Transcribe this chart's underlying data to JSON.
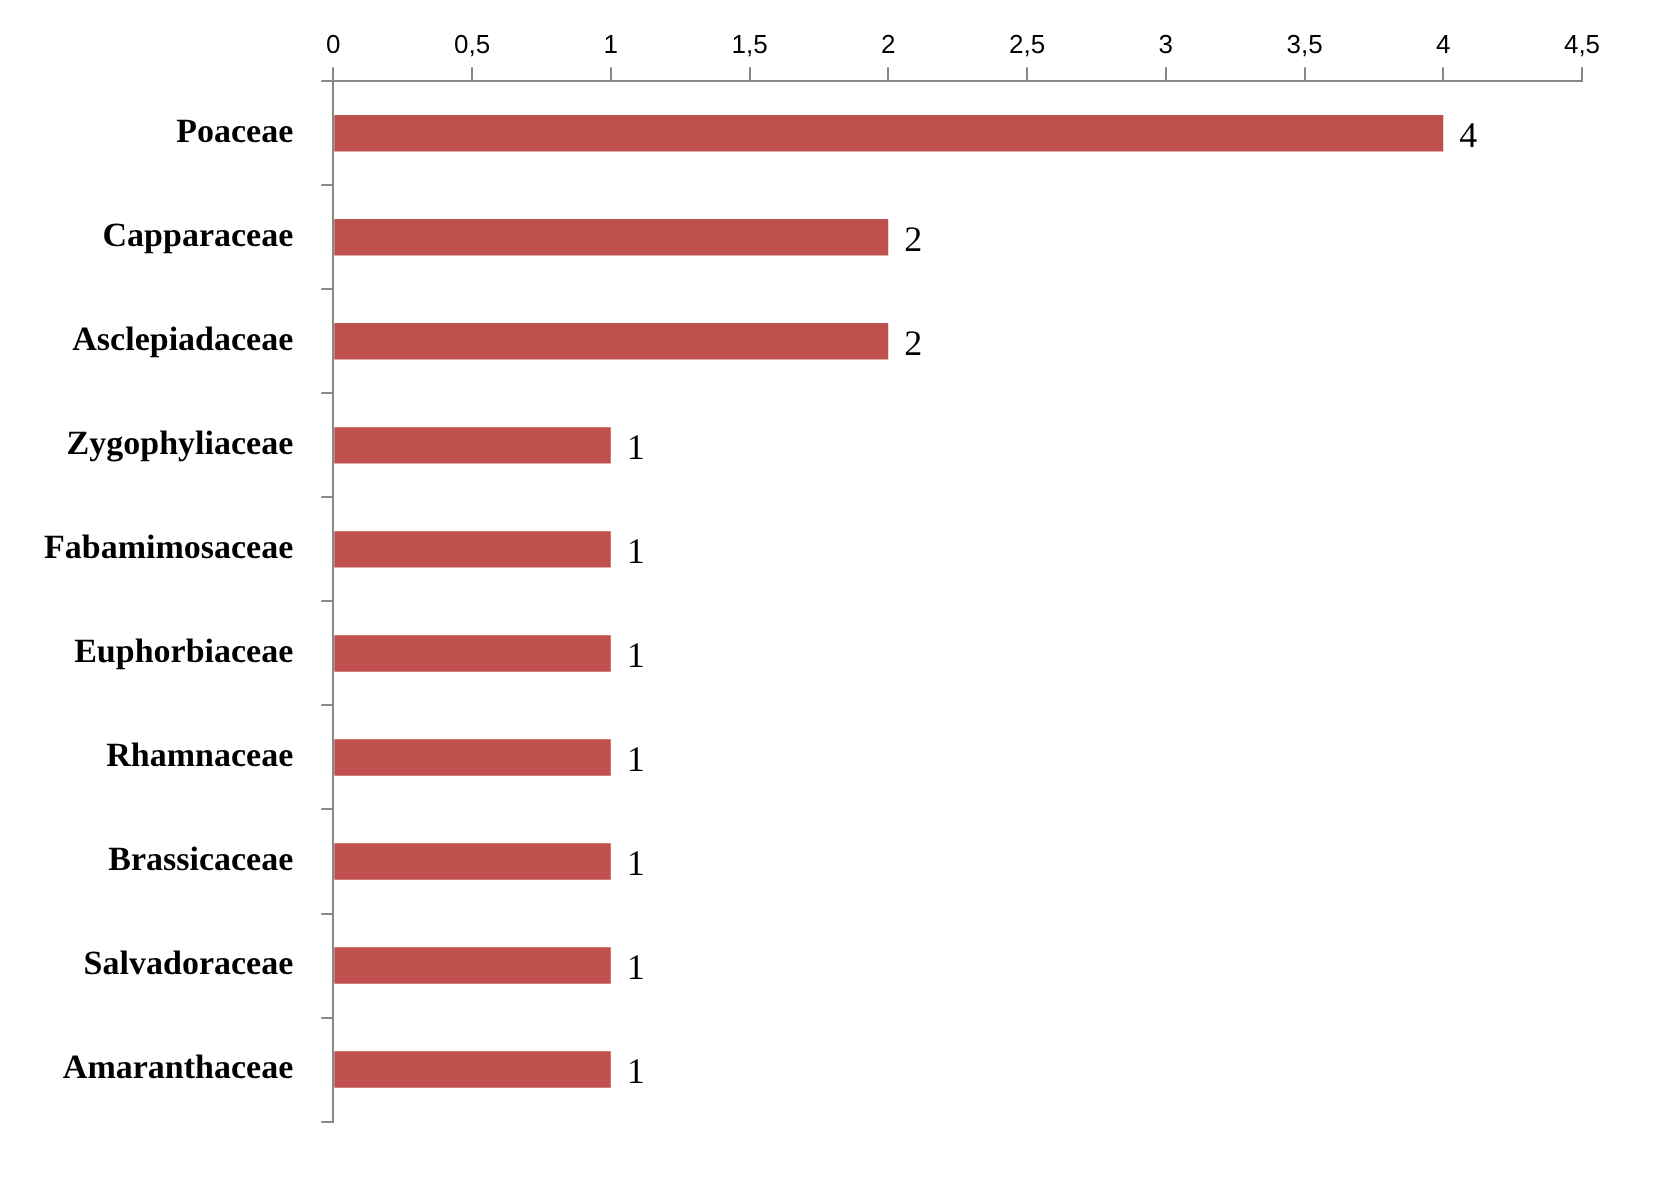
{
  "chart_data": {
    "type": "bar",
    "orientation": "horizontal",
    "categories": [
      "Poaceae",
      "Capparaceae",
      "Asclepiadaceae",
      "Zygophyliaceae",
      "Fabamimosaceae",
      "Euphorbiaceae",
      "Rhamnaceae",
      "Brassicaceae",
      "Salvadoraceae",
      "Amaranthaceae"
    ],
    "values": [
      4,
      2,
      2,
      1,
      1,
      1,
      1,
      1,
      1,
      1
    ],
    "color": "#c0504d",
    "xlim": [
      0,
      4.5
    ],
    "xticks": [
      0,
      {
        "value": 0.5,
        "label": "0,5"
      },
      1,
      {
        "value": 1.5,
        "label": "1,5"
      },
      2,
      {
        "value": 2.5,
        "label": "2,5"
      },
      3,
      {
        "value": 3.5,
        "label": "3,5"
      },
      4,
      {
        "value": 4.5,
        "label": "4,5"
      }
    ],
    "data_labels": true,
    "legend": false
  }
}
